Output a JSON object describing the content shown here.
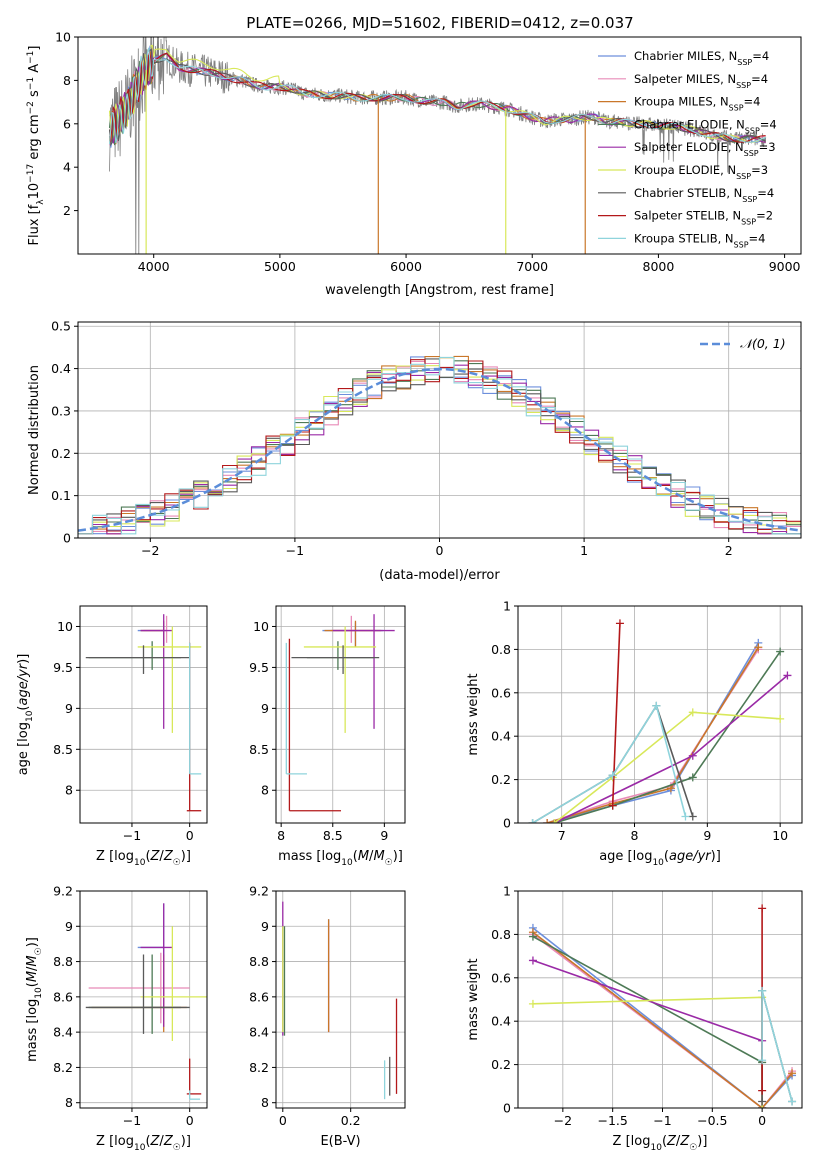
{
  "figure_title": "PLATE=0266, MJD=51602, FIBERID=0412, z=0.037",
  "colors": {
    "chabrier_miles": "#6d8fdc",
    "salpeter_miles": "#e88bb8",
    "kroupa_miles": "#c9772a",
    "chabrier_elodie": "#4e7a56",
    "salpeter_elodie": "#9a2aa6",
    "kroupa_elodie": "#d8e85a",
    "chabrier_stelib": "#5a5a5a",
    "salpeter_stelib": "#b3181a",
    "kroupa_stelib": "#8fd4dc",
    "observed": "#808080",
    "gaussian": "#5b8dd9"
  },
  "chart_data": [
    {
      "id": "spectrum",
      "type": "line",
      "title": "PLATE=0266, MJD=51602, FIBERID=0412, z=0.037",
      "xlabel": "wavelength [Angstrom, rest frame]",
      "ylabel": "Flux [fλ10⁻¹⁷ erg cm⁻² s⁻¹ A⁻¹]",
      "xlim": [
        3400,
        9130
      ],
      "ylim": [
        0,
        10
      ],
      "xticks": [
        4000,
        5000,
        6000,
        7000,
        8000,
        9000
      ],
      "yticks": [
        2,
        4,
        6,
        8,
        10
      ],
      "legend": "top-right",
      "legend_entries": [
        "Chabrier MILES, N_SSP=4",
        "Salpeter MILES, N_SSP=4",
        "Kroupa MILES, N_SSP=4",
        "Chabrier ELODIE, N_SSP=4",
        "Salpeter ELODIE, N_SSP=3",
        "Kroupa ELODIE, N_SSP=3",
        "Chabrier STELIB, N_SSP=4",
        "Salpeter STELIB, N_SSP=2",
        "Kroupa STELIB, N_SSP=4"
      ],
      "continuum": {
        "x": [
          3650,
          3700,
          3800,
          3900,
          4000,
          4100,
          4200,
          4300,
          4400,
          4500,
          4600,
          4700,
          4800,
          4900,
          5000,
          5100,
          5200,
          5300,
          5400,
          5500,
          5600,
          5700,
          5800,
          5900,
          6000,
          6100,
          6200,
          6300,
          6400,
          6500,
          6600,
          6700,
          6800,
          6900,
          7000,
          7100,
          7200,
          7300,
          7400,
          7500,
          7600,
          7700,
          7800,
          7900,
          8000,
          8100,
          8200,
          8300,
          8400,
          8500,
          8600,
          8700,
          8800,
          8850
        ],
        "y": [
          5.8,
          6.0,
          6.8,
          8.2,
          8.9,
          9.1,
          8.6,
          8.5,
          8.4,
          8.3,
          8.1,
          8.0,
          7.8,
          7.7,
          7.7,
          7.6,
          7.4,
          7.35,
          7.3,
          7.3,
          7.2,
          7.2,
          7.2,
          7.2,
          7.2,
          7.1,
          7.0,
          7.0,
          6.8,
          6.9,
          6.9,
          6.8,
          6.7,
          6.5,
          6.3,
          6.1,
          6.2,
          6.2,
          6.3,
          6.3,
          6.1,
          6.1,
          6.0,
          6.0,
          5.9,
          5.9,
          5.8,
          5.7,
          5.5,
          5.4,
          5.3,
          5.3,
          5.3,
          5.3
        ]
      }
    },
    {
      "id": "residuals",
      "type": "line",
      "xlabel": "(data-model)/error",
      "ylabel": "Normed distribution",
      "xlim": [
        -2.5,
        2.5
      ],
      "ylim": [
        0,
        0.51
      ],
      "xticks": [
        -2,
        -1,
        0,
        1,
        2
      ],
      "yticks": [
        0.0,
        0.1,
        0.2,
        0.3,
        0.4,
        0.5
      ],
      "legend": "top-right",
      "legend_entries": [
        "𝒩(0, 1)"
      ],
      "gaussian": {
        "mean": 0,
        "sigma": 1
      }
    },
    {
      "id": "z_vs_age",
      "type": "scatter",
      "xlabel": "Z [log10(Z/Z☉)]",
      "ylabel": "age [log10(age/yr)]",
      "xlim": [
        -1.9,
        0.3
      ],
      "ylim": [
        7.6,
        10.25
      ],
      "xticks": [
        -1,
        0
      ],
      "yticks": [
        8.0,
        8.5,
        9.0,
        9.5,
        10.0
      ],
      "series": [
        {
          "model": "chabrier_miles",
          "x": -0.45,
          "y": 9.95,
          "xerr": [
            0.45,
            0.0
          ],
          "yerr": [
            0.2,
            0.1
          ]
        },
        {
          "model": "salpeter_miles",
          "x": -0.4,
          "y": 9.95,
          "xerr": [
            0.4,
            0.0
          ],
          "yerr": [
            0.15,
            0.18
          ]
        },
        {
          "model": "kroupa_miles",
          "x": -0.45,
          "y": 9.95,
          "xerr": [
            0.4,
            0.0
          ],
          "yerr": [
            0.2,
            0.12
          ]
        },
        {
          "model": "chabrier_elodie",
          "x": -0.65,
          "y": 9.62,
          "xerr": [
            1.1,
            0.5
          ],
          "yerr": [
            0.15,
            0.2
          ]
        },
        {
          "model": "salpeter_elodie",
          "x": -0.45,
          "y": 9.95,
          "xerr": [
            0.4,
            0.15
          ],
          "yerr": [
            1.2,
            0.2
          ]
        },
        {
          "model": "kroupa_elodie",
          "x": -0.3,
          "y": 9.75,
          "xerr": [
            0.6,
            0.5
          ],
          "yerr": [
            1.05,
            0.25
          ]
        },
        {
          "model": "chabrier_stelib",
          "x": -0.8,
          "y": 9.62,
          "xerr": [
            1.0,
            0.8
          ],
          "yerr": [
            0.2,
            0.15
          ]
        },
        {
          "model": "salpeter_stelib",
          "x": 0.0,
          "y": 7.75,
          "xerr": [
            0.05,
            0.2
          ],
          "yerr": [
            0.0,
            2.05
          ]
        },
        {
          "model": "kroupa_stelib",
          "x": 0.0,
          "y": 8.2,
          "xerr": [
            0.0,
            0.2
          ],
          "yerr": [
            0.0,
            1.6
          ]
        }
      ]
    },
    {
      "id": "mass_vs_age",
      "type": "scatter",
      "xlabel": "mass [log10(M/M☉)]",
      "ylabel": "",
      "xlim": [
        7.95,
        9.2
      ],
      "ylim": [
        7.6,
        10.25
      ],
      "xticks": [
        8.0,
        8.5,
        9.0
      ],
      "yticks": [
        8.0,
        8.5,
        9.0,
        9.5,
        10.0
      ],
      "series": [
        {
          "model": "chabrier_miles",
          "x": 8.72,
          "y": 9.95,
          "xerr": [
            0.32,
            0.27
          ],
          "yerr": [
            0.2,
            0.1
          ]
        },
        {
          "model": "salpeter_miles",
          "x": 8.68,
          "y": 9.95,
          "xerr": [
            0.2,
            0.2
          ],
          "yerr": [
            0.15,
            0.18
          ]
        },
        {
          "model": "kroupa_miles",
          "x": 8.72,
          "y": 9.95,
          "xerr": [
            0.3,
            0.25
          ],
          "yerr": [
            0.2,
            0.12
          ]
        },
        {
          "model": "chabrier_elodie",
          "x": 8.55,
          "y": 9.62,
          "xerr": [
            0.3,
            0.35
          ],
          "yerr": [
            0.15,
            0.2
          ]
        },
        {
          "model": "salpeter_elodie",
          "x": 8.9,
          "y": 9.95,
          "xerr": [
            0.4,
            0.2
          ],
          "yerr": [
            1.2,
            0.2
          ]
        },
        {
          "model": "kroupa_elodie",
          "x": 8.62,
          "y": 9.75,
          "xerr": [
            0.4,
            0.3
          ],
          "yerr": [
            1.05,
            0.25
          ]
        },
        {
          "model": "chabrier_stelib",
          "x": 8.6,
          "y": 9.62,
          "xerr": [
            0.5,
            0.35
          ],
          "yerr": [
            0.2,
            0.15
          ]
        },
        {
          "model": "salpeter_stelib",
          "x": 8.08,
          "y": 7.75,
          "xerr": [
            0.0,
            0.5
          ],
          "yerr": [
            0.0,
            2.1
          ]
        },
        {
          "model": "kroupa_stelib",
          "x": 8.05,
          "y": 8.2,
          "xerr": [
            0.0,
            0.2
          ],
          "yerr": [
            0.0,
            1.6
          ]
        }
      ]
    },
    {
      "id": "age_weights",
      "type": "line",
      "xlabel": "age [log10(age/yr)]",
      "ylabel": "mass weight",
      "xlim": [
        6.4,
        10.3
      ],
      "ylim": [
        0,
        1.0
      ],
      "xticks": [
        7,
        8,
        9,
        10
      ],
      "yticks": [
        0.0,
        0.2,
        0.4,
        0.6,
        0.8,
        1.0
      ],
      "series": [
        {
          "model": "chabrier_miles",
          "x": [
            6.8,
            7.7,
            8.5,
            9.7
          ],
          "y": [
            0.0,
            0.08,
            0.15,
            0.83
          ]
        },
        {
          "model": "salpeter_miles",
          "x": [
            6.8,
            7.7,
            8.5,
            9.7
          ],
          "y": [
            0.0,
            0.1,
            0.17,
            0.8
          ]
        },
        {
          "model": "kroupa_miles",
          "x": [
            6.8,
            7.7,
            8.5,
            9.7
          ],
          "y": [
            0.0,
            0.09,
            0.16,
            0.81
          ]
        },
        {
          "model": "chabrier_elodie",
          "x": [
            6.9,
            7.7,
            8.8,
            10.0
          ],
          "y": [
            0.0,
            0.08,
            0.21,
            0.79
          ]
        },
        {
          "model": "salpeter_elodie",
          "x": [
            6.9,
            8.8,
            10.1
          ],
          "y": [
            0.0,
            0.31,
            0.68
          ]
        },
        {
          "model": "kroupa_elodie",
          "x": [
            6.9,
            7.7,
            8.8,
            10.0
          ],
          "y": [
            0.0,
            0.21,
            0.51,
            0.48
          ]
        },
        {
          "model": "chabrier_stelib",
          "x": [
            6.6,
            7.7,
            8.3,
            8.8
          ],
          "y": [
            0.0,
            0.22,
            0.54,
            0.03
          ]
        },
        {
          "model": "salpeter_stelib",
          "x": [
            7.7,
            7.8
          ],
          "y": [
            0.08,
            0.92
          ]
        },
        {
          "model": "kroupa_stelib",
          "x": [
            6.6,
            7.7,
            8.3,
            8.7
          ],
          "y": [
            0.0,
            0.22,
            0.54,
            0.03
          ]
        }
      ]
    },
    {
      "id": "z_vs_mass",
      "type": "scatter",
      "xlabel": "Z [log10(Z/Z☉)]",
      "ylabel": "mass [log10(M/M☉)]",
      "xlim": [
        -1.9,
        0.3
      ],
      "ylim": [
        7.97,
        9.2
      ],
      "xticks": [
        -1,
        0
      ],
      "yticks": [
        8.0,
        8.2,
        8.4,
        8.6,
        8.8,
        9.0,
        9.2
      ],
      "series": [
        {
          "model": "chabrier_miles",
          "x": -0.45,
          "y": 8.88,
          "xerr": [
            0.45,
            0.0
          ],
          "yerr": [
            0.38,
            0.25
          ]
        },
        {
          "model": "salpeter_miles",
          "x": -0.5,
          "y": 8.65,
          "xerr": [
            1.25,
            0.5
          ],
          "yerr": [
            0.2,
            0.2
          ]
        },
        {
          "model": "kroupa_miles",
          "x": -0.45,
          "y": 8.54,
          "xerr": [
            1.25,
            0.4
          ],
          "yerr": [
            0.14,
            0.3
          ]
        },
        {
          "model": "chabrier_elodie",
          "x": -0.65,
          "y": 8.54,
          "xerr": [
            1.1,
            0.5
          ],
          "yerr": [
            0.15,
            0.3
          ]
        },
        {
          "model": "salpeter_elodie",
          "x": -0.45,
          "y": 8.88,
          "xerr": [
            0.4,
            0.15
          ],
          "yerr": [
            0.45,
            0.25
          ]
        },
        {
          "model": "kroupa_elodie",
          "x": -0.3,
          "y": 8.6,
          "xerr": [
            0.55,
            0.6
          ],
          "yerr": [
            0.25,
            0.4
          ]
        },
        {
          "model": "chabrier_stelib",
          "x": -0.8,
          "y": 8.54,
          "xerr": [
            1.0,
            0.8
          ],
          "yerr": [
            0.15,
            0.3
          ]
        },
        {
          "model": "salpeter_stelib",
          "x": 0.0,
          "y": 8.05,
          "xerr": [
            0.05,
            0.2
          ],
          "yerr": [
            0.0,
            0.2
          ]
        },
        {
          "model": "kroupa_stelib",
          "x": 0.0,
          "y": 8.02,
          "xerr": [
            0.0,
            0.18
          ],
          "yerr": [
            0.0,
            0.05
          ]
        }
      ]
    },
    {
      "id": "ebv_vs_mass",
      "type": "scatter",
      "xlabel": "E(B-V)",
      "ylabel": "",
      "xlim": [
        -0.02,
        0.36
      ],
      "ylim": [
        7.97,
        9.2
      ],
      "xticks": [
        0.0,
        0.2
      ],
      "yticks": [
        8.0,
        8.2,
        8.4,
        8.6,
        8.8,
        9.0,
        9.2
      ],
      "series": [
        {
          "model": "chabrier_miles",
          "x": 0.135,
          "y": 8.72,
          "yerr": [
            0.32,
            0.32
          ]
        },
        {
          "model": "salpeter_miles",
          "x": 0.135,
          "y": 8.72,
          "yerr": [
            0.32,
            0.3
          ]
        },
        {
          "model": "kroupa_miles",
          "x": 0.135,
          "y": 8.72,
          "yerr": [
            0.32,
            0.32
          ]
        },
        {
          "model": "chabrier_elodie",
          "x": 0.005,
          "y": 8.7,
          "yerr": [
            0.32,
            0.3
          ]
        },
        {
          "model": "salpeter_elodie",
          "x": 0.0,
          "y": 8.78,
          "yerr": [
            0.4,
            0.36
          ]
        },
        {
          "model": "kroupa_elodie",
          "x": 0.0,
          "y": 8.7,
          "yerr": [
            0.3,
            0.3
          ]
        },
        {
          "model": "chabrier_stelib",
          "x": 0.315,
          "y": 8.15,
          "yerr": [
            0.11,
            0.11
          ]
        },
        {
          "model": "salpeter_stelib",
          "x": 0.335,
          "y": 8.32,
          "yerr": [
            0.27,
            0.27
          ]
        },
        {
          "model": "kroupa_stelib",
          "x": 0.3,
          "y": 8.13,
          "yerr": [
            0.11,
            0.11
          ]
        }
      ]
    },
    {
      "id": "z_weights",
      "type": "line",
      "xlabel": "Z [log10(Z/Z☉)]",
      "ylabel": "mass weight",
      "xlim": [
        -2.45,
        0.4
      ],
      "ylim": [
        0,
        1.0
      ],
      "xticks": [
        -2.0,
        -1.5,
        -1.0,
        -0.5,
        0.0
      ],
      "yticks": [
        0.0,
        0.2,
        0.4,
        0.6,
        0.8,
        1.0
      ],
      "series": [
        {
          "model": "chabrier_miles",
          "x": [
            -2.3,
            0.0,
            0.3
          ],
          "y": [
            0.83,
            0.0,
            0.15
          ]
        },
        {
          "model": "salpeter_miles",
          "x": [
            -2.3,
            0.0,
            0.3
          ],
          "y": [
            0.8,
            0.0,
            0.17
          ]
        },
        {
          "model": "kroupa_miles",
          "x": [
            -2.3,
            0.0,
            0.3
          ],
          "y": [
            0.81,
            0.0,
            0.16
          ]
        },
        {
          "model": "chabrier_elodie",
          "x": [
            -2.3,
            0.0,
            0.0
          ],
          "y": [
            0.79,
            0.21,
            0.0
          ]
        },
        {
          "model": "salpeter_elodie",
          "x": [
            -2.3,
            0.0,
            0.0
          ],
          "y": [
            0.68,
            0.31,
            0.0
          ]
        },
        {
          "model": "kroupa_elodie",
          "x": [
            -2.3,
            0.0,
            0.0
          ],
          "y": [
            0.48,
            0.51,
            0.0
          ]
        },
        {
          "model": "chabrier_stelib",
          "x": [
            0.0,
            0.0,
            0.3
          ],
          "y": [
            0.03,
            0.54,
            0.03
          ]
        },
        {
          "model": "salpeter_stelib",
          "x": [
            0.0,
            0.0
          ],
          "y": [
            0.08,
            0.92
          ]
        },
        {
          "model": "kroupa_stelib",
          "x": [
            0.0,
            0.0,
            0.3
          ],
          "y": [
            0.22,
            0.54,
            0.03
          ]
        }
      ]
    }
  ]
}
